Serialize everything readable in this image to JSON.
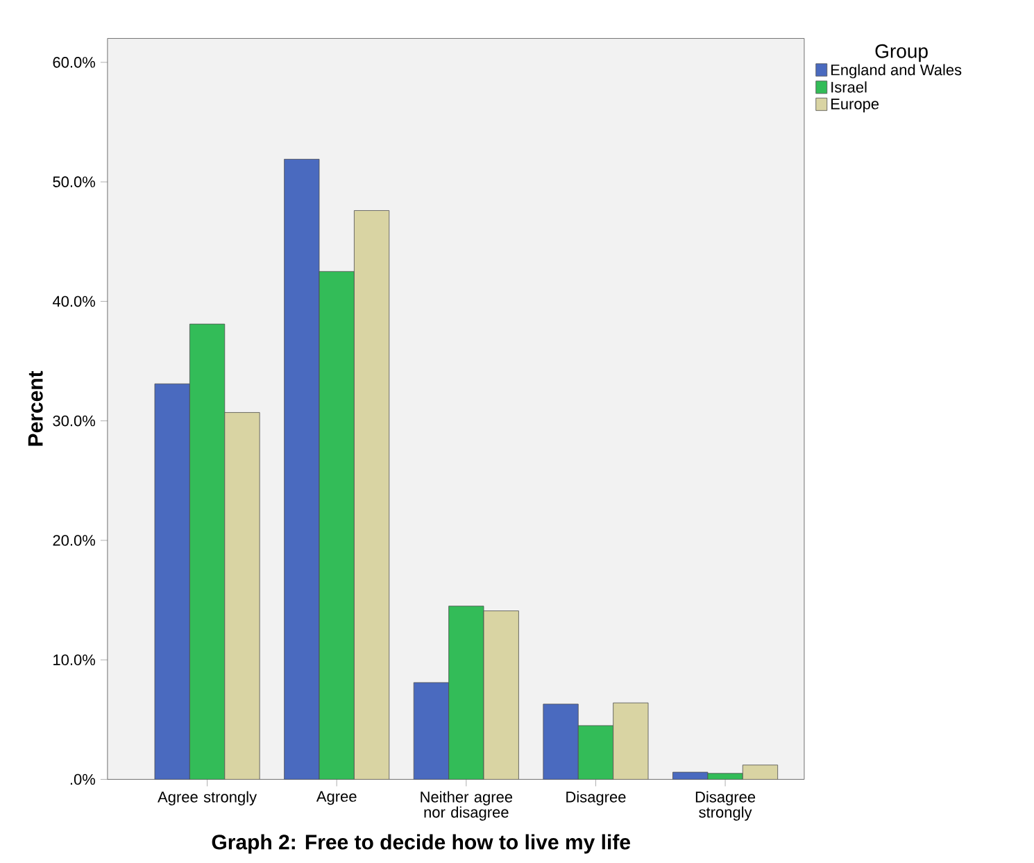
{
  "chart_data": {
    "type": "bar",
    "title": "Graph 2: Free to decide how to live my life",
    "ylabel": "Percent",
    "legend_title": "Group",
    "categories": [
      "Agree strongly",
      "Agree",
      "Neither agree nor disagree",
      "Disagree",
      "Disagree strongly"
    ],
    "series": [
      {
        "name": "England and Wales",
        "color": "#4a6abf",
        "values": [
          33.1,
          51.9,
          8.1,
          6.3,
          0.6
        ]
      },
      {
        "name": "Israel",
        "color": "#33bc58",
        "values": [
          38.1,
          42.5,
          14.5,
          4.5,
          0.5
        ]
      },
      {
        "name": "Europe",
        "color": "#d9d4a3",
        "values": [
          30.7,
          47.6,
          14.1,
          6.4,
          1.2
        ]
      }
    ],
    "ylim": [
      0,
      62
    ],
    "yticks": [
      {
        "value": 0,
        "label": ".0%"
      },
      {
        "value": 10,
        "label": "10.0%"
      },
      {
        "value": 20,
        "label": "20.0%"
      },
      {
        "value": 30,
        "label": "30.0%"
      },
      {
        "value": 40,
        "label": "40.0%"
      },
      {
        "value": 50,
        "label": "50.0%"
      },
      {
        "value": 60,
        "label": "60.0%"
      }
    ],
    "legend": "top right"
  }
}
